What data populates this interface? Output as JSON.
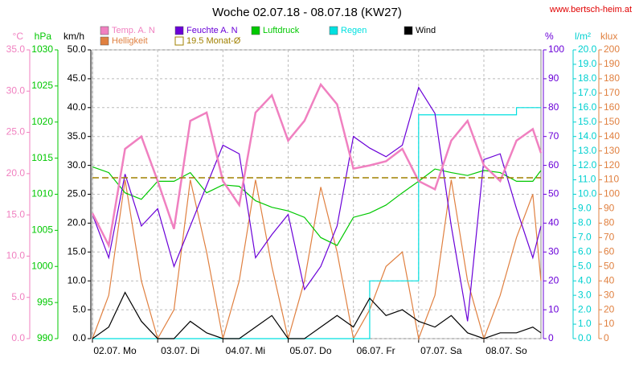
{
  "chart_data": {
    "type": "line",
    "title": "Woche 02.07.18 - 08.07.18 (KW27)",
    "source": "www.bertsch-heim.at",
    "x": [
      0,
      6,
      12,
      18,
      24,
      30,
      36,
      42,
      48,
      54,
      60,
      66,
      72,
      78,
      84,
      90,
      96,
      102,
      108,
      114,
      120,
      126,
      132,
      138,
      144,
      150,
      156,
      162,
      165
    ],
    "xlim": [
      0,
      165
    ],
    "xticks": [
      {
        "value": 0,
        "label": "02.07.  Mo"
      },
      {
        "value": 24,
        "label": "03.07.  Di"
      },
      {
        "value": 48,
        "label": "04.07.  Mi"
      },
      {
        "value": 72,
        "label": "05.07.  Do"
      },
      {
        "value": 96,
        "label": "06.07.  Fr"
      },
      {
        "value": 120,
        "label": "07.07.  Sa"
      },
      {
        "value": 144,
        "label": "08.07.  So"
      }
    ],
    "grid": true,
    "axes": [
      {
        "label": "°C",
        "color": "#f080c0",
        "side": "left",
        "lim": [
          0,
          35
        ],
        "ticks": [
          {
            "value": 0,
            "label": "0.0"
          },
          {
            "value": 5,
            "label": "5.0"
          },
          {
            "value": 10,
            "label": "10.0"
          },
          {
            "value": 15,
            "label": "15.0"
          },
          {
            "value": 20,
            "label": "20.0"
          },
          {
            "value": 25,
            "label": "25.0"
          },
          {
            "value": 30,
            "label": "30.0"
          },
          {
            "value": 35,
            "label": "35.0"
          }
        ]
      },
      {
        "label": "hPa",
        "color": "#00c800",
        "side": "left",
        "lim": [
          990,
          1030
        ],
        "ticks": [
          990,
          995,
          1000,
          1005,
          1010,
          1015,
          1020,
          1025,
          1030
        ]
      },
      {
        "label": "km/h",
        "color": "#000000",
        "side": "left",
        "lim": [
          0,
          50
        ],
        "ticks": [
          {
            "value": 0,
            "label": "0.0"
          },
          {
            "value": 5,
            "label": "5.0"
          },
          {
            "value": 10,
            "label": "10.0"
          },
          {
            "value": 15,
            "label": "15.0"
          },
          {
            "value": 20,
            "label": "20.0"
          },
          {
            "value": 25,
            "label": "25.0"
          },
          {
            "value": 30,
            "label": "30.0"
          },
          {
            "value": 35,
            "label": "35.0"
          },
          {
            "value": 40,
            "label": "40.0"
          },
          {
            "value": 45,
            "label": "45.0"
          },
          {
            "value": 50,
            "label": "50.0"
          }
        ]
      },
      {
        "label": "%",
        "color": "#6a00d8",
        "side": "right",
        "lim": [
          0,
          100
        ],
        "ticks": [
          0,
          10,
          20,
          30,
          40,
          50,
          60,
          70,
          80,
          90,
          100
        ]
      },
      {
        "label": "l/m²",
        "color": "#00d0d0",
        "side": "right",
        "lim": [
          0,
          20
        ],
        "ticks": [
          {
            "value": 0,
            "label": "0.0"
          },
          {
            "value": 1,
            "label": "1.0"
          },
          {
            "value": 2,
            "label": "2.0"
          },
          {
            "value": 3,
            "label": "3.0"
          },
          {
            "value": 4,
            "label": "4.0"
          },
          {
            "value": 5,
            "label": "5.0"
          },
          {
            "value": 6,
            "label": "6.0"
          },
          {
            "value": 7,
            "label": "7.0"
          },
          {
            "value": 8,
            "label": "8.0"
          },
          {
            "value": 9,
            "label": "9.0"
          },
          {
            "value": 10,
            "label": "10.0"
          },
          {
            "value": 11,
            "label": "11.0"
          },
          {
            "value": 12,
            "label": "12.0"
          },
          {
            "value": 13,
            "label": "13.0"
          },
          {
            "value": 14,
            "label": "14.0"
          },
          {
            "value": 15,
            "label": "15.0"
          },
          {
            "value": 16,
            "label": "16.0"
          },
          {
            "value": 17,
            "label": "17.0"
          },
          {
            "value": 18,
            "label": "18.0"
          },
          {
            "value": 19,
            "label": "19.0"
          },
          {
            "value": 20,
            "label": "20.0"
          }
        ]
      },
      {
        "label": "klux",
        "color": "#e08040",
        "side": "right",
        "lim": [
          0,
          200
        ],
        "ticks": [
          0,
          10,
          20,
          30,
          40,
          50,
          60,
          70,
          80,
          90,
          100,
          110,
          120,
          130,
          140,
          150,
          160,
          170,
          180,
          190,
          200
        ]
      }
    ],
    "series": [
      {
        "name": "Temp. A. N",
        "color": "#f080c0",
        "axis": 0,
        "values": [
          15.2,
          11.3,
          23,
          24.5,
          19.1,
          13.3,
          26.4,
          27.4,
          19.1,
          16.2,
          27.4,
          29.5,
          24,
          26.4,
          30.8,
          28.4,
          20.6,
          21,
          21.5,
          23,
          19.1,
          18.1,
          24,
          26.4,
          21,
          19.1,
          24,
          25.4,
          22.5
        ]
      },
      {
        "name": "Feuchte A. N",
        "color": "#6a00d8",
        "axis": 3,
        "values": [
          43,
          28,
          57,
          39,
          45,
          25,
          39,
          53,
          67,
          64,
          28,
          36,
          43,
          17,
          25,
          39,
          70,
          66,
          63,
          67,
          87,
          78,
          39,
          6,
          62,
          64,
          45,
          28,
          39
        ]
      },
      {
        "name": "Luftdruck",
        "color": "#00c800",
        "axis": 1,
        "values": [
          1013.8,
          1013,
          1010.2,
          1009.3,
          1011.8,
          1011.8,
          1013,
          1010.2,
          1011.3,
          1011.1,
          1009.1,
          1008.2,
          1007.7,
          1006.8,
          1004,
          1002.9,
          1006.8,
          1007.4,
          1008.5,
          1010.2,
          1011.8,
          1013.5,
          1013,
          1012.6,
          1013.3,
          1013,
          1011.8,
          1011.8,
          1013.3
        ]
      },
      {
        "name": "Regen",
        "color": "#00e0e0",
        "axis": 4,
        "step": true,
        "values": [
          0,
          0,
          0,
          0,
          0,
          0,
          0,
          0,
          0,
          0,
          0,
          0,
          0,
          0,
          0,
          0,
          0,
          4,
          4,
          4,
          15.5,
          15.5,
          15.5,
          15.5,
          15.5,
          15.5,
          16,
          16,
          16
        ]
      },
      {
        "name": "Wind",
        "color": "#000000",
        "axis": 2,
        "values": [
          0,
          2,
          8,
          3,
          0,
          0,
          3,
          1,
          0,
          0,
          2,
          4,
          0,
          0,
          2,
          4,
          2,
          7,
          4,
          5,
          3,
          2,
          4,
          1,
          0,
          1,
          1,
          2,
          1
        ]
      },
      {
        "name": "Helligkeit",
        "color": "#e08040",
        "axis": 5,
        "values": [
          0,
          30,
          110,
          40,
          0,
          20,
          110,
          60,
          0,
          40,
          110,
          50,
          0,
          40,
          105,
          60,
          0,
          20,
          50,
          60,
          0,
          30,
          110,
          40,
          0,
          30,
          70,
          100,
          40
        ]
      }
    ],
    "average": {
      "name": "19.5 Monat-Ø",
      "value": 19.5,
      "color": "#a08000",
      "axis": 0
    }
  }
}
